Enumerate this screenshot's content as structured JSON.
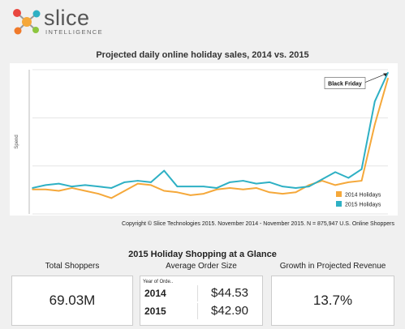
{
  "logo": {
    "name": "slice",
    "sub": "INTELLIGENCE"
  },
  "chart_data": {
    "type": "line",
    "title": "Projected daily online holiday sales, 2014 vs. 2015",
    "ylabel": "Spend",
    "xlabel": "",
    "x": [
      1,
      2,
      3,
      4,
      5,
      6,
      7,
      8,
      9,
      10,
      11,
      12,
      13,
      14,
      15,
      16,
      17,
      18,
      19,
      20,
      21,
      22,
      23,
      24,
      25,
      26,
      27,
      28
    ],
    "ylim": [
      0,
      100
    ],
    "grid": "horizontal",
    "legend": "bottom-right",
    "series": [
      {
        "name": "2014 Holidays",
        "color": "#f5a83a",
        "values": [
          17,
          17,
          16,
          18,
          16,
          14,
          11,
          16,
          21,
          20,
          16,
          15,
          13,
          14,
          17,
          18,
          17,
          18,
          15,
          14,
          15,
          20,
          23,
          20,
          22,
          23,
          62,
          94
        ]
      },
      {
        "name": "2015 Holidays",
        "color": "#2eb0c4",
        "values": [
          18,
          20,
          21,
          19,
          20,
          19,
          18,
          22,
          23,
          22,
          30,
          19,
          19,
          19,
          18,
          22,
          23,
          21,
          22,
          19,
          18,
          19,
          24,
          29,
          25,
          31,
          78,
          98
        ]
      }
    ],
    "annotations": [
      {
        "text": "Black Friday",
        "x": 28
      }
    ]
  },
  "copyright": "Copyright © Slice Technologies 2015. November 2014 - November 2015. N = 875,947 U.S. Online Shoppers",
  "summary": {
    "title": "2015 Holiday Shopping at a Glance",
    "total_shoppers": {
      "label": "Total Shoppers",
      "value": "69.03M"
    },
    "aos": {
      "label": "Average Order Size",
      "year_header": "Year of Orde..",
      "rows": [
        {
          "year": "2014",
          "value": "$44.53"
        },
        {
          "year": "2015",
          "value": "$42.90"
        }
      ]
    },
    "growth": {
      "label": "Growth in Projected Revenue",
      "value": "13.7%"
    }
  }
}
